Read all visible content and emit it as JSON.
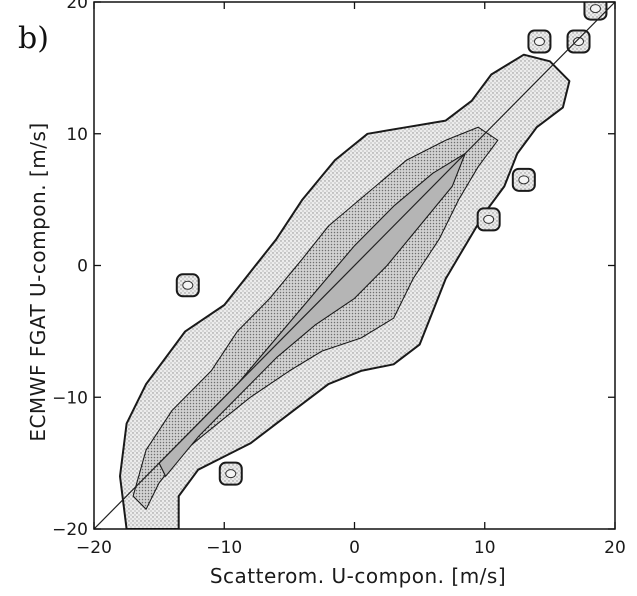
{
  "chart_data": {
    "type": "heatmap",
    "panel_label": "b)",
    "xlabel": "Scatterom. U-compon. [m/s]",
    "ylabel": "ECMWF FGAT U-compon. [m/s]",
    "xlim": [
      -20,
      20
    ],
    "ylim": [
      -20,
      20
    ],
    "x_ticks": [
      -20,
      -10,
      0,
      10,
      20
    ],
    "y_ticks": [
      -20,
      -10,
      0,
      10,
      20
    ],
    "x_tick_labels": [
      "−20",
      "−10",
      "0",
      "10",
      "20"
    ],
    "y_tick_labels": [
      "−20",
      "−10",
      "0",
      "10",
      "20"
    ],
    "reference_line": {
      "from": [
        -20,
        -20
      ],
      "to": [
        20,
        20
      ]
    },
    "contour_levels": [
      {
        "level": "outer",
        "points": [
          [
            -17.5,
            -20
          ],
          [
            -18,
            -16
          ],
          [
            -17.5,
            -12
          ],
          [
            -16,
            -9
          ],
          [
            -13,
            -5
          ],
          [
            -10,
            -3
          ],
          [
            -8,
            -0.5
          ],
          [
            -6,
            2
          ],
          [
            -4,
            5
          ],
          [
            -1.5,
            8
          ],
          [
            1,
            10
          ],
          [
            4,
            10.5
          ],
          [
            7,
            11
          ],
          [
            9,
            12.5
          ],
          [
            10.5,
            14.5
          ],
          [
            13,
            16
          ],
          [
            15,
            15.5
          ],
          [
            16.5,
            14
          ],
          [
            16,
            12
          ],
          [
            14,
            10.5
          ],
          [
            12.5,
            8.5
          ],
          [
            11.5,
            6
          ],
          [
            10,
            4
          ],
          [
            8.5,
            1.5
          ],
          [
            7,
            -1
          ],
          [
            6,
            -3.5
          ],
          [
            5,
            -6
          ],
          [
            3,
            -7.5
          ],
          [
            0.5,
            -8
          ],
          [
            -2,
            -9
          ],
          [
            -4,
            -10.5
          ],
          [
            -6,
            -12
          ],
          [
            -8,
            -13.5
          ],
          [
            -10,
            -14.5
          ],
          [
            -12,
            -15.5
          ],
          [
            -13.5,
            -17.5
          ],
          [
            -13.5,
            -20
          ]
        ],
        "fill": "#e3e3e3"
      },
      {
        "level": "middle",
        "points": [
          [
            -17,
            -17.5
          ],
          [
            -16,
            -14
          ],
          [
            -14,
            -11
          ],
          [
            -11,
            -8
          ],
          [
            -9,
            -5
          ],
          [
            -6.5,
            -2.5
          ],
          [
            -4,
            0.5
          ],
          [
            -2,
            3
          ],
          [
            1,
            5.5
          ],
          [
            4,
            8
          ],
          [
            7,
            9.5
          ],
          [
            9.5,
            10.5
          ],
          [
            11,
            9.5
          ],
          [
            9.5,
            7.5
          ],
          [
            8,
            5
          ],
          [
            6.5,
            2
          ],
          [
            4.5,
            -1
          ],
          [
            3,
            -4
          ],
          [
            0.5,
            -5.5
          ],
          [
            -2.5,
            -6.5
          ],
          [
            -5,
            -8
          ],
          [
            -8,
            -10
          ],
          [
            -10.5,
            -12
          ],
          [
            -13,
            -14
          ],
          [
            -15,
            -16.5
          ],
          [
            -16,
            -18.5
          ]
        ],
        "fill": "#c8c8c8"
      },
      {
        "level": "inner",
        "points": [
          [
            -15,
            -15
          ],
          [
            -12,
            -12
          ],
          [
            -9,
            -9
          ],
          [
            -6,
            -5.5
          ],
          [
            -3,
            -2
          ],
          [
            0,
            1.5
          ],
          [
            3,
            4.5
          ],
          [
            6,
            7
          ],
          [
            8.5,
            8.5
          ],
          [
            7.5,
            6
          ],
          [
            5,
            3
          ],
          [
            2.5,
            0
          ],
          [
            0,
            -2.5
          ],
          [
            -3,
            -4.5
          ],
          [
            -6,
            -7
          ],
          [
            -9,
            -10
          ],
          [
            -12,
            -13
          ],
          [
            -14.5,
            -16
          ]
        ],
        "fill": "#aaaaaa"
      }
    ],
    "isolated_patches": [
      {
        "x": -12.8,
        "y": -1.5
      },
      {
        "x": -9.5,
        "y": -15.8
      },
      {
        "x": 14.2,
        "y": 17
      },
      {
        "x": 17.2,
        "y": 17
      },
      {
        "x": 18.5,
        "y": 19.5
      },
      {
        "x": 10.3,
        "y": 3.5
      },
      {
        "x": 13,
        "y": 6.5
      }
    ]
  }
}
